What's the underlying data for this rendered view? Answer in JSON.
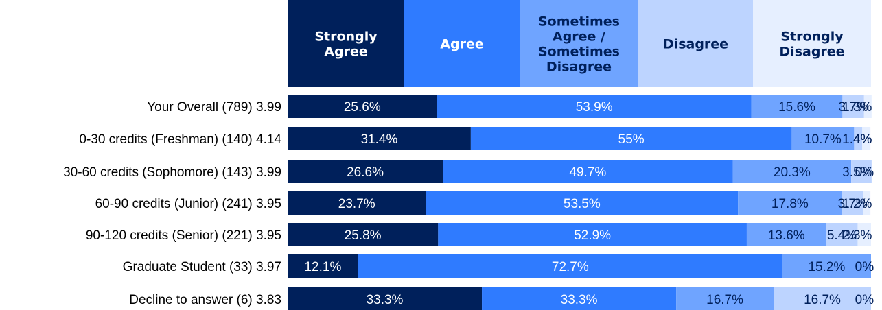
{
  "chart_data": {
    "type": "bar",
    "orientation": "horizontal",
    "stacked": true,
    "legend_position": "top",
    "categories": [
      {
        "label": "Your Overall (789) 3.99",
        "values": [
          25.6,
          53.9,
          15.6,
          3.7,
          1.3
        ]
      },
      {
        "label": "0-30 credits (Freshman) (140) 4.14",
        "values": [
          31.4,
          55,
          10.7,
          1.4,
          1.4
        ]
      },
      {
        "label": "30-60 credits (Sophomore) (143) 3.99",
        "values": [
          26.6,
          49.7,
          20.3,
          3.5,
          0
        ]
      },
      {
        "label": "60-90 credits (Junior) (241) 3.95",
        "values": [
          23.7,
          53.5,
          17.8,
          3.7,
          1.2
        ]
      },
      {
        "label": "90-120 credits (Senior) (221) 3.95",
        "values": [
          25.8,
          52.9,
          13.6,
          5.4,
          2.3
        ]
      },
      {
        "label": "Graduate Student (33) 3.97",
        "values": [
          12.1,
          72.7,
          15.2,
          0,
          0
        ]
      },
      {
        "label": "Decline to answer (6) 3.83",
        "values": [
          33.3,
          33.3,
          16.7,
          16.7,
          0
        ]
      }
    ],
    "series": [
      {
        "name": "Strongly Agree",
        "name_lines": [
          "Strongly",
          "Agree"
        ],
        "color": "#00205b",
        "header_text_color": "#ffffff",
        "value_text_color": "#ffffff"
      },
      {
        "name": "Agree",
        "name_lines": [
          "Agree"
        ],
        "color": "#2f7bff",
        "header_text_color": "#ffffff",
        "value_text_color": "#ffffff"
      },
      {
        "name": "Sometimes Agree / Sometimes Disagree",
        "name_lines": [
          "Sometimes",
          "Agree /",
          "Sometimes",
          "Disagree"
        ],
        "color": "#6fa4ff",
        "header_text_color": "#00205b",
        "value_text_color": "#00205b"
      },
      {
        "name": "Disagree",
        "name_lines": [
          "Disagree"
        ],
        "color": "#bdd4ff",
        "header_text_color": "#00205b",
        "value_text_color": "#00205b"
      },
      {
        "name": "Strongly Disagree",
        "name_lines": [
          "Strongly",
          "Disagree"
        ],
        "color": "#e6efff",
        "header_text_color": "#00205b",
        "value_text_color": "#00205b"
      }
    ],
    "value_suffix": "%",
    "xlim": [
      0,
      100
    ],
    "grid": false
  }
}
